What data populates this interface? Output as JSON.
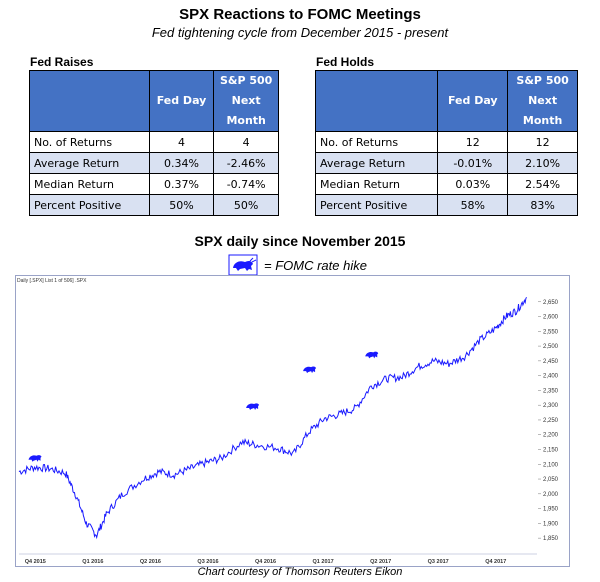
{
  "header": {
    "title": "SPX Reactions to FOMC Meetings",
    "subtitle": "Fed tightening cycle from December 2015 - present"
  },
  "tables": {
    "raises": {
      "caption": "Fed Raises",
      "col1": "Fed Day",
      "col2_l1": "S&P 500",
      "col2_l2": "Next",
      "col2_l3": "Month",
      "rows": [
        {
          "label": "No. of Returns",
          "a": "4",
          "b": "4"
        },
        {
          "label": "Average Return",
          "a": "0.34%",
          "b": "-2.46%"
        },
        {
          "label": "Median Return",
          "a": "0.37%",
          "b": "-0.74%"
        },
        {
          "label": "Percent Positive",
          "a": "50%",
          "b": "50%"
        }
      ]
    },
    "holds": {
      "caption": "Fed Holds",
      "col1": "Fed Day",
      "col2_l1": "S&P 500",
      "col2_l2": "Next",
      "col2_l3": "Month",
      "rows": [
        {
          "label": "No. of Returns",
          "a": "12",
          "b": "12"
        },
        {
          "label": "Average Return",
          "a": "-0.01%",
          "b": "2.10%"
        },
        {
          "label": "Median Return",
          "a": "0.03%",
          "b": "2.54%"
        },
        {
          "label": "Percent Positive",
          "a": "58%",
          "b": "83%"
        }
      ]
    }
  },
  "chart_section": {
    "title": "SPX daily since November 2015",
    "legend_text": "= FOMC rate hike",
    "header_text": "Daily [.SPX] List 1 of 506] .SPX",
    "caption": "Chart courtesy of Thomson Reuters Eikon"
  },
  "chart_data": {
    "type": "line",
    "x_labels": [
      "Q4 2015",
      "Q1 2016",
      "Q2 2016",
      "Q3 2016",
      "Q4 2016",
      "Q1 2017",
      "Q2 2017",
      "Q3 2017",
      "Q4 2017"
    ],
    "yticks": [
      1850,
      1900,
      1950,
      2000,
      2050,
      2100,
      2150,
      2200,
      2250,
      2300,
      2350,
      2400,
      2450,
      2500,
      2550,
      2600,
      2650
    ],
    "ylim": [
      1820,
      2700
    ],
    "grid": false,
    "series": [
      {
        "color": "#1a1aff",
        "points": [
          [
            0,
            2075
          ],
          [
            0.03,
            2090
          ],
          [
            0.06,
            2085
          ],
          [
            0.09,
            2070
          ],
          [
            0.11,
            1995
          ],
          [
            0.13,
            1900
          ],
          [
            0.15,
            1860
          ],
          [
            0.17,
            1935
          ],
          [
            0.2,
            2000
          ],
          [
            0.24,
            2050
          ],
          [
            0.27,
            2075
          ],
          [
            0.3,
            2065
          ],
          [
            0.33,
            2085
          ],
          [
            0.36,
            2105
          ],
          [
            0.39,
            2120
          ],
          [
            0.43,
            2175
          ],
          [
            0.46,
            2165
          ],
          [
            0.5,
            2155
          ],
          [
            0.53,
            2135
          ],
          [
            0.56,
            2210
          ],
          [
            0.59,
            2255
          ],
          [
            0.62,
            2270
          ],
          [
            0.65,
            2290
          ],
          [
            0.68,
            2365
          ],
          [
            0.71,
            2390
          ],
          [
            0.74,
            2395
          ],
          [
            0.77,
            2430
          ],
          [
            0.8,
            2450
          ],
          [
            0.83,
            2440
          ],
          [
            0.86,
            2465
          ],
          [
            0.89,
            2520
          ],
          [
            0.92,
            2560
          ],
          [
            0.94,
            2600
          ],
          [
            0.96,
            2620
          ],
          [
            0.98,
            2665
          ]
        ]
      }
    ],
    "markers": {
      "name": "FOMC rate hike",
      "points": [
        [
          0.03,
          2095
        ],
        [
          0.45,
          2270
        ],
        [
          0.56,
          2395
        ],
        [
          0.68,
          2445
        ]
      ]
    }
  }
}
